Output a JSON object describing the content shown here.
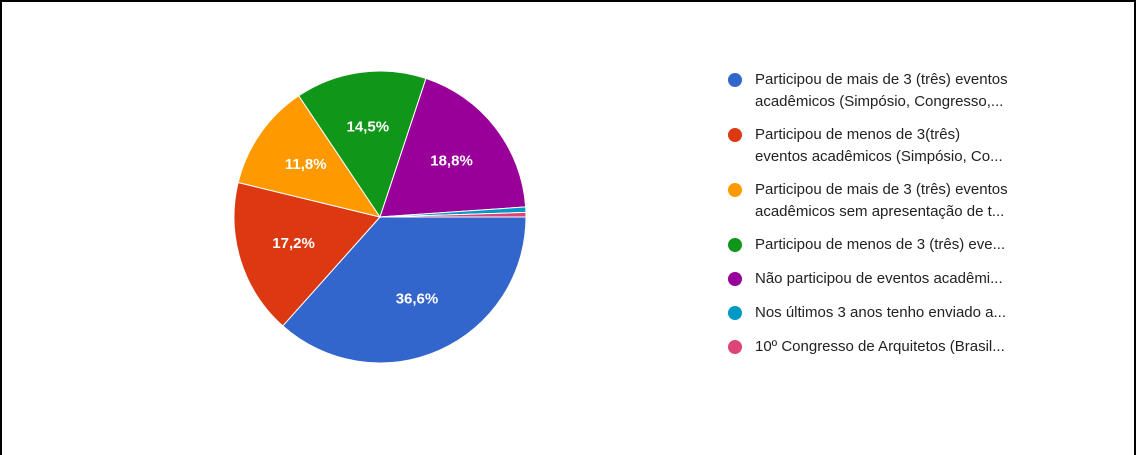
{
  "chart_data": {
    "type": "pie",
    "categories": [
      [
        "Participou de mais de 3 (três) eventos",
        "acadêmicos (Simpósio, Congresso,..."
      ],
      [
        "Participou de menos de 3(três)",
        "eventos acadêmicos (Simpósio, Co..."
      ],
      [
        "Participou de mais de 3 (três) eventos",
        "acadêmicos sem apresentação de t..."
      ],
      [
        "Participou de menos de 3 (três) eve..."
      ],
      [
        "Não participou de eventos acadêmi..."
      ],
      [
        "Nos últimos 3 anos tenho enviado a..."
      ],
      [
        "10º Congresso de Arquitetos (Brasil..."
      ]
    ],
    "values": [
      36.6,
      17.2,
      11.8,
      14.5,
      18.8,
      0.6,
      0.5
    ],
    "value_labels": [
      "36,6%",
      "17,2%",
      "11,8%",
      "14,5%",
      "18,8%",
      null,
      null
    ],
    "colors": [
      "#3366cc",
      "#dc3912",
      "#ff9900",
      "#109618",
      "#990099",
      "#0099c6",
      "#dd4477"
    ]
  }
}
